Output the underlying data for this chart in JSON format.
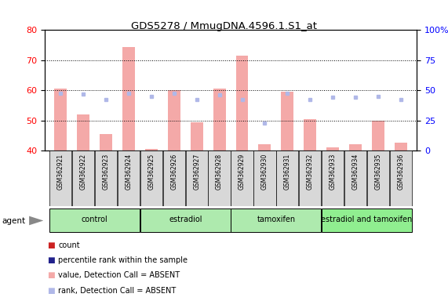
{
  "title": "GDS5278 / MmugDNA.4596.1.S1_at",
  "samples": [
    "GSM362921",
    "GSM362922",
    "GSM362923",
    "GSM362924",
    "GSM362925",
    "GSM362926",
    "GSM362927",
    "GSM362928",
    "GSM362929",
    "GSM362930",
    "GSM362931",
    "GSM362932",
    "GSM362933",
    "GSM362934",
    "GSM362935",
    "GSM362936"
  ],
  "bar_values": [
    60.5,
    52.0,
    45.5,
    74.5,
    40.5,
    60.0,
    49.5,
    60.5,
    71.5,
    42.0,
    59.5,
    50.5,
    41.0,
    42.0,
    50.0,
    42.5
  ],
  "bar_absent": [
    true,
    true,
    true,
    true,
    true,
    true,
    true,
    true,
    true,
    true,
    true,
    true,
    true,
    true,
    true,
    true
  ],
  "rank_values": [
    47.5,
    47.0,
    42.5,
    47.5,
    45.0,
    47.5,
    42.5,
    46.0,
    42.5,
    23.0,
    47.5,
    42.5,
    44.0,
    44.0,
    45.0,
    42.5
  ],
  "rank_absent": [
    true,
    true,
    true,
    true,
    true,
    true,
    true,
    true,
    true,
    true,
    true,
    true,
    true,
    true,
    true,
    true
  ],
  "ylim_left": [
    40,
    80
  ],
  "ylim_right": [
    0,
    100
  ],
  "yticks_left": [
    40,
    50,
    60,
    70,
    80
  ],
  "yticks_right": [
    0,
    25,
    50,
    75,
    100
  ],
  "ytick_labels_right": [
    "0",
    "25",
    "50",
    "75",
    "100%"
  ],
  "bar_color_absent": "#f4a9a8",
  "marker_color_absent": "#b0b8e8",
  "background_color": "#ffffff",
  "group_info": [
    {
      "label": "control",
      "start": 0,
      "end": 3,
      "color": "#aeeaae"
    },
    {
      "label": "estradiol",
      "start": 4,
      "end": 7,
      "color": "#aeeaae"
    },
    {
      "label": "tamoxifen",
      "start": 8,
      "end": 11,
      "color": "#aeeaae"
    },
    {
      "label": "estradiol and tamoxifen",
      "start": 12,
      "end": 15,
      "color": "#90ee90"
    }
  ],
  "legend": [
    {
      "label": "count",
      "color": "#cc2222"
    },
    {
      "label": "percentile rank within the sample",
      "color": "#22228c"
    },
    {
      "label": "value, Detection Call = ABSENT",
      "color": "#f4a9a8"
    },
    {
      "label": "rank, Detection Call = ABSENT",
      "color": "#b0b8e8"
    }
  ]
}
